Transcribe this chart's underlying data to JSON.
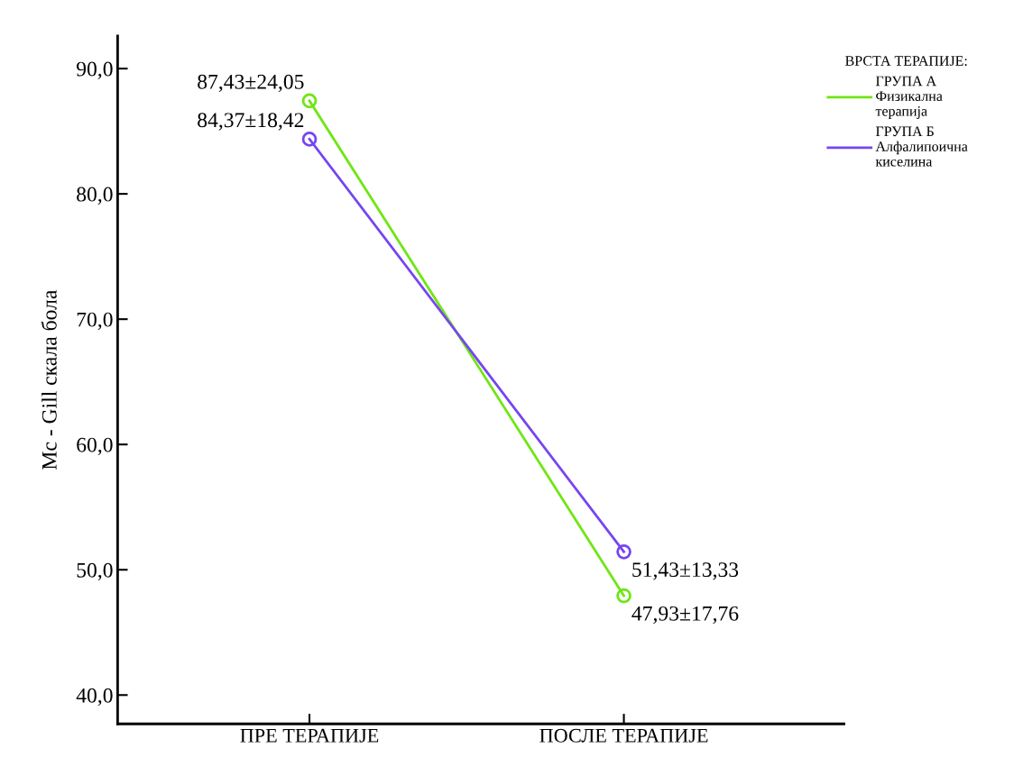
{
  "chart_data": {
    "type": "line",
    "ylabel": "Mc - Gill скала бола",
    "legend_title": "ВРСТА ТЕРАПИЈЕ:",
    "categories": [
      "ПРЕ ТЕРАПИЈЕ",
      "ПОСЛЕ ТЕРАПИЈЕ"
    ],
    "series": [
      {
        "name": "ГРУПА А\nФизикална\nтерапија",
        "color": "#6ee614",
        "values": [
          87.43,
          47.93
        ],
        "value_labels": [
          "87,43±24,05",
          "47,93±17,76"
        ]
      },
      {
        "name": "ГРУПА Б\nАлфалипоична\nкиселина",
        "color": "#7646f0",
        "values": [
          84.37,
          51.43
        ],
        "value_labels": [
          "84,37±18,42",
          "51,43±13,33"
        ]
      }
    ],
    "ylim": [
      37.7,
      92.6
    ],
    "yticks": [
      {
        "value": 40,
        "label": "40,0"
      },
      {
        "value": 50,
        "label": "50,0"
      },
      {
        "value": 60,
        "label": "60,0"
      },
      {
        "value": 70,
        "label": "70,0"
      },
      {
        "value": 80,
        "label": "80,0"
      },
      {
        "value": 90,
        "label": "90,0"
      }
    ],
    "marker": "circle",
    "line_style": "solid",
    "legend": "top right",
    "grid": false
  }
}
